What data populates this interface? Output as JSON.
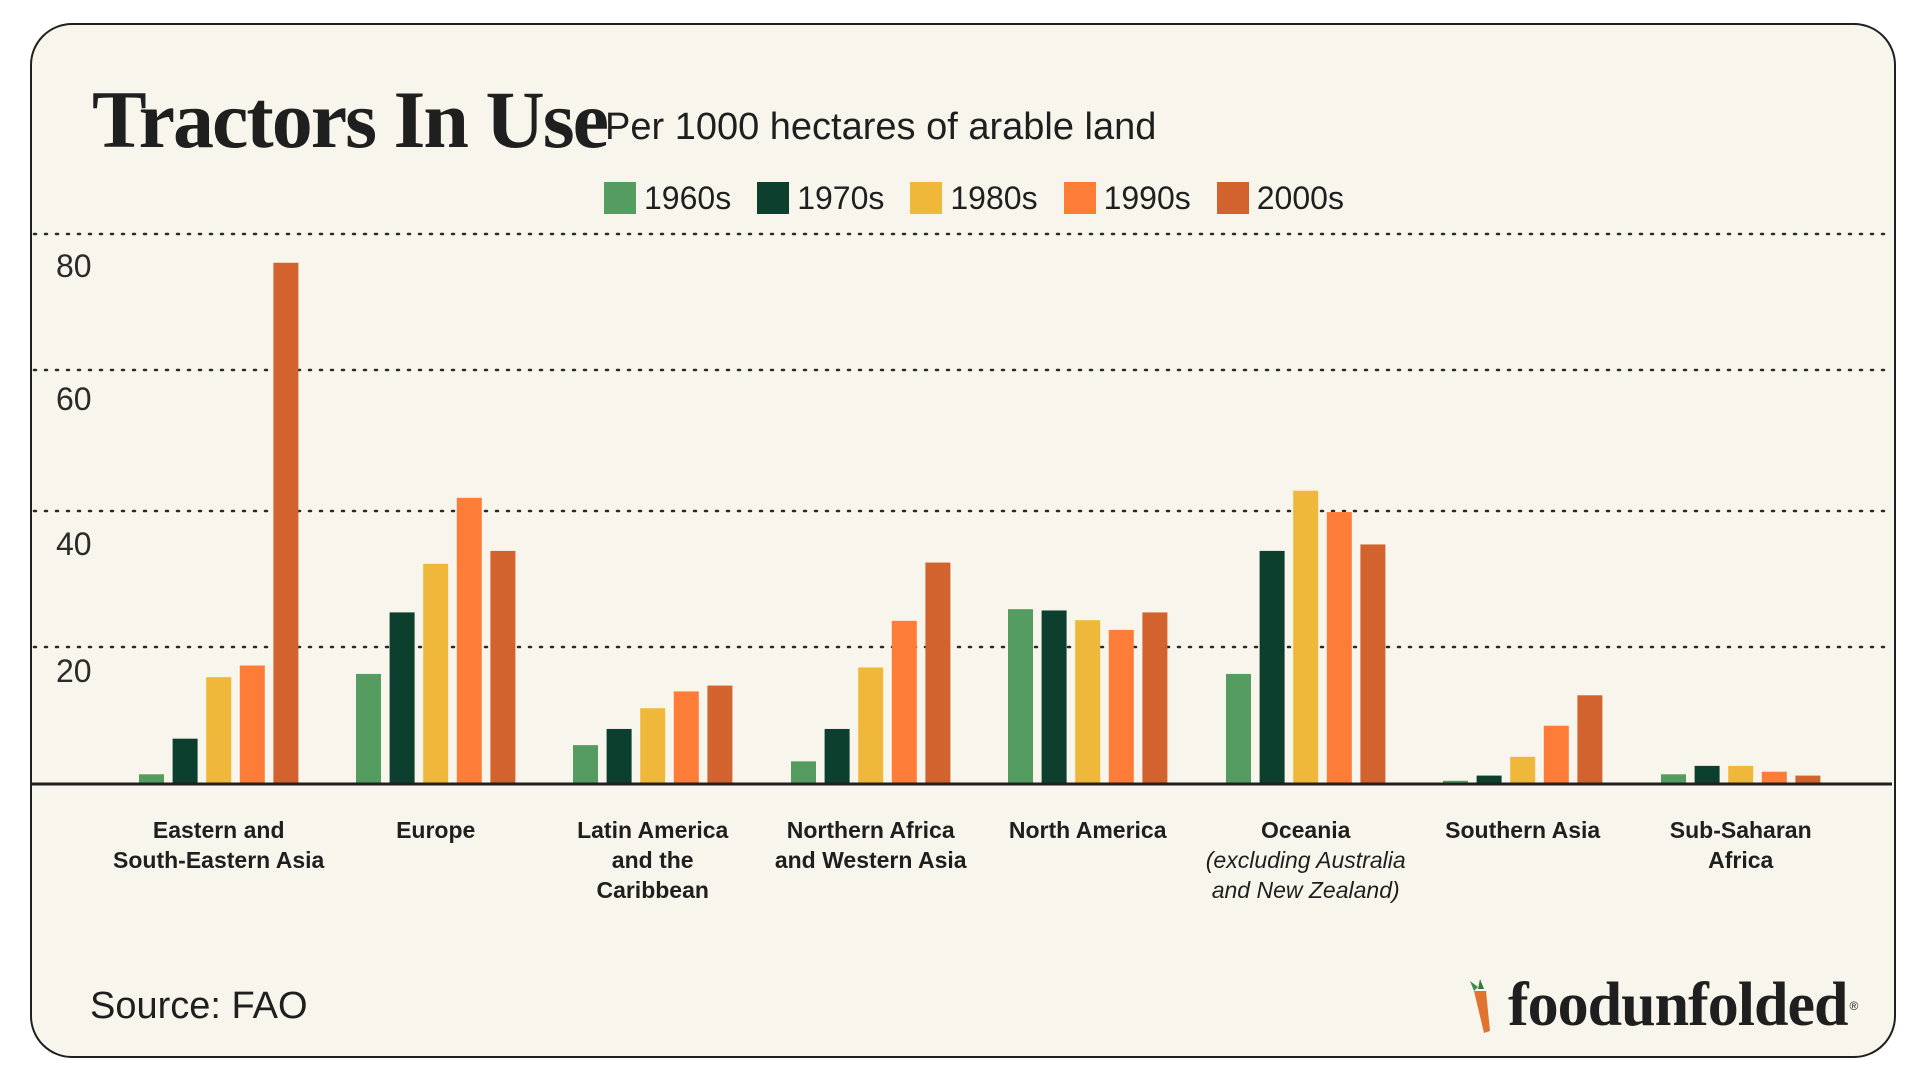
{
  "header": {
    "title": "Tractors In Use",
    "subtitle": "Per 1000 hectares of arable land"
  },
  "footer": {
    "source": "Source: FAO",
    "logo_text": "foodunfolded",
    "logo_mark": "®"
  },
  "colors": {
    "1960s": "#549c5f",
    "1970s": "#0d3f2e",
    "1980s": "#f0b83a",
    "1990s": "#fd7c38",
    "2000s": "#d3632e"
  },
  "chart_data": {
    "type": "bar",
    "title": "Tractors In Use",
    "subtitle": "Per 1000 hectares of arable land",
    "ylim": [
      0,
      80
    ],
    "yticks": [
      20,
      40,
      60,
      80
    ],
    "grid": true,
    "legend_position": "top",
    "categories": [
      {
        "label": [
          "Eastern and",
          "South-Eastern Asia"
        ],
        "note": []
      },
      {
        "label": [
          "Europe"
        ],
        "note": []
      },
      {
        "label": [
          "Latin America",
          "and the",
          "Caribbean"
        ],
        "note": []
      },
      {
        "label": [
          "Northern Africa",
          "and Western Asia"
        ],
        "note": []
      },
      {
        "label": [
          "North America"
        ],
        "note": []
      },
      {
        "label": [
          "Oceania"
        ],
        "note": [
          "(excluding Australia",
          "and New Zealand)"
        ]
      },
      {
        "label": [
          "Southern Asia"
        ],
        "note": []
      },
      {
        "label": [
          "Sub-Saharan",
          "Africa"
        ],
        "note": []
      }
    ],
    "series": [
      {
        "name": "1960s",
        "values": [
          1.5,
          17,
          6,
          3.5,
          27,
          17,
          0.5,
          1.5
        ]
      },
      {
        "name": "1970s",
        "values": [
          7,
          26.5,
          8.5,
          8.5,
          26.8,
          36,
          1.3,
          2.8
        ]
      },
      {
        "name": "1980s",
        "values": [
          16.5,
          34,
          11.7,
          18,
          25.3,
          45.3,
          4.2,
          2.8
        ]
      },
      {
        "name": "1990s",
        "values": [
          18.3,
          44.2,
          14.3,
          25.2,
          23.8,
          42,
          9,
          1.9
        ]
      },
      {
        "name": "2000s",
        "values": [
          80.5,
          36,
          15.2,
          34.2,
          26.5,
          37,
          13.7,
          1.3
        ]
      }
    ]
  }
}
